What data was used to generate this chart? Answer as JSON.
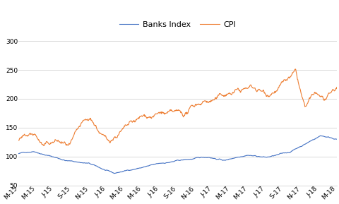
{
  "legend_labels": [
    "Banks Index",
    "CPI"
  ],
  "line_colors": [
    "#4472C4",
    "#ED7D31"
  ],
  "line_width": 0.8,
  "ylim": [
    50,
    310
  ],
  "yticks": [
    50,
    100,
    150,
    200,
    250,
    300
  ],
  "background_color": "#ffffff",
  "grid_color": "#d9d9d9",
  "x_labels": [
    "M-15",
    "M-15",
    "J-15",
    "S-15",
    "N-15",
    "J-16",
    "M-16",
    "M-16",
    "J-16",
    "S-16",
    "N-16",
    "J-17",
    "M-17",
    "M-17",
    "J-17",
    "S-17",
    "N-17",
    "J-18",
    "M-18"
  ],
  "n_points": 760
}
